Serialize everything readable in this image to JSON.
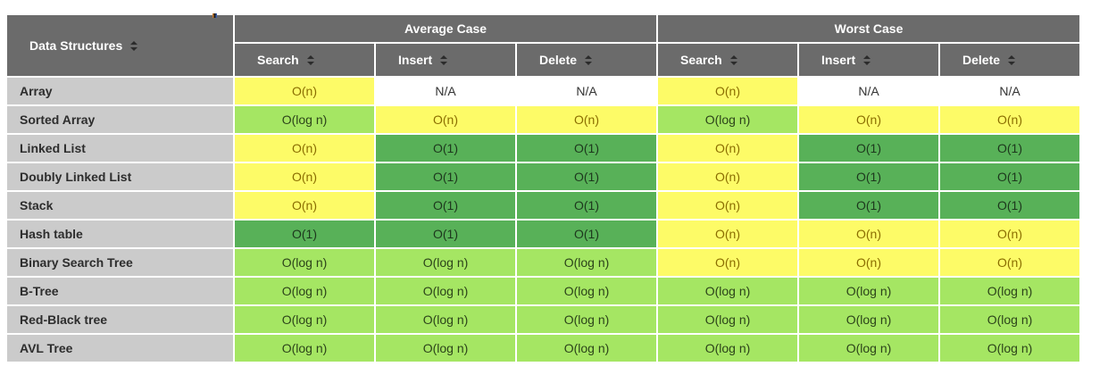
{
  "colors": {
    "header_bg": "#6b6b6b",
    "row_label_bg": "#cbcbcb",
    "yellow_fair": "#fdfb67",
    "lightgreen_good": "#a5e663",
    "green_excellent": "#58b158"
  },
  "table": {
    "corner_label": "Data Structures",
    "groups": {
      "average": "Average Case",
      "worst": "Worst Case"
    },
    "operations": {
      "search": "Search",
      "insert": "Insert",
      "delete": "Delete"
    },
    "sort_icon": "sortable-toggle",
    "rows": [
      {
        "label": "Array",
        "cells": [
          {
            "value": "O(n)",
            "tone": "yellow"
          },
          {
            "value": "N/A",
            "tone": "plain"
          },
          {
            "value": "N/A",
            "tone": "plain"
          },
          {
            "value": "O(n)",
            "tone": "yellow"
          },
          {
            "value": "N/A",
            "tone": "plain"
          },
          {
            "value": "N/A",
            "tone": "plain"
          }
        ]
      },
      {
        "label": "Sorted Array",
        "cells": [
          {
            "value": "O(log n)",
            "tone": "lightgreen"
          },
          {
            "value": "O(n)",
            "tone": "yellow"
          },
          {
            "value": "O(n)",
            "tone": "yellow"
          },
          {
            "value": "O(log n)",
            "tone": "lightgreen"
          },
          {
            "value": "O(n)",
            "tone": "yellow"
          },
          {
            "value": "O(n)",
            "tone": "yellow"
          }
        ]
      },
      {
        "label": "Linked List",
        "cells": [
          {
            "value": "O(n)",
            "tone": "yellow"
          },
          {
            "value": "O(1)",
            "tone": "green"
          },
          {
            "value": "O(1)",
            "tone": "green"
          },
          {
            "value": "O(n)",
            "tone": "yellow"
          },
          {
            "value": "O(1)",
            "tone": "green"
          },
          {
            "value": "O(1)",
            "tone": "green"
          }
        ]
      },
      {
        "label": "Doubly Linked List",
        "cells": [
          {
            "value": "O(n)",
            "tone": "yellow"
          },
          {
            "value": "O(1)",
            "tone": "green"
          },
          {
            "value": "O(1)",
            "tone": "green"
          },
          {
            "value": "O(n)",
            "tone": "yellow"
          },
          {
            "value": "O(1)",
            "tone": "green"
          },
          {
            "value": "O(1)",
            "tone": "green"
          }
        ]
      },
      {
        "label": "Stack",
        "cells": [
          {
            "value": "O(n)",
            "tone": "yellow"
          },
          {
            "value": "O(1)",
            "tone": "green"
          },
          {
            "value": "O(1)",
            "tone": "green"
          },
          {
            "value": "O(n)",
            "tone": "yellow"
          },
          {
            "value": "O(1)",
            "tone": "green"
          },
          {
            "value": "O(1)",
            "tone": "green"
          }
        ]
      },
      {
        "label": "Hash table",
        "cells": [
          {
            "value": "O(1)",
            "tone": "green"
          },
          {
            "value": "O(1)",
            "tone": "green"
          },
          {
            "value": "O(1)",
            "tone": "green"
          },
          {
            "value": "O(n)",
            "tone": "yellow"
          },
          {
            "value": "O(n)",
            "tone": "yellow"
          },
          {
            "value": "O(n)",
            "tone": "yellow"
          }
        ]
      },
      {
        "label": "Binary Search Tree",
        "cells": [
          {
            "value": "O(log n)",
            "tone": "lightgreen"
          },
          {
            "value": "O(log n)",
            "tone": "lightgreen"
          },
          {
            "value": "O(log n)",
            "tone": "lightgreen"
          },
          {
            "value": "O(n)",
            "tone": "yellow"
          },
          {
            "value": "O(n)",
            "tone": "yellow"
          },
          {
            "value": "O(n)",
            "tone": "yellow"
          }
        ]
      },
      {
        "label": "B-Tree",
        "cells": [
          {
            "value": "O(log n)",
            "tone": "lightgreen"
          },
          {
            "value": "O(log n)",
            "tone": "lightgreen"
          },
          {
            "value": "O(log n)",
            "tone": "lightgreen"
          },
          {
            "value": "O(log n)",
            "tone": "lightgreen"
          },
          {
            "value": "O(log n)",
            "tone": "lightgreen"
          },
          {
            "value": "O(log n)",
            "tone": "lightgreen"
          }
        ]
      },
      {
        "label": "Red-Black tree",
        "cells": [
          {
            "value": "O(log n)",
            "tone": "lightgreen"
          },
          {
            "value": "O(log n)",
            "tone": "lightgreen"
          },
          {
            "value": "O(log n)",
            "tone": "lightgreen"
          },
          {
            "value": "O(log n)",
            "tone": "lightgreen"
          },
          {
            "value": "O(log n)",
            "tone": "lightgreen"
          },
          {
            "value": "O(log n)",
            "tone": "lightgreen"
          }
        ]
      },
      {
        "label": "AVL Tree",
        "cells": [
          {
            "value": "O(log n)",
            "tone": "lightgreen"
          },
          {
            "value": "O(log n)",
            "tone": "lightgreen"
          },
          {
            "value": "O(log n)",
            "tone": "lightgreen"
          },
          {
            "value": "O(log n)",
            "tone": "lightgreen"
          },
          {
            "value": "O(log n)",
            "tone": "lightgreen"
          },
          {
            "value": "O(log n)",
            "tone": "lightgreen"
          }
        ]
      }
    ]
  }
}
